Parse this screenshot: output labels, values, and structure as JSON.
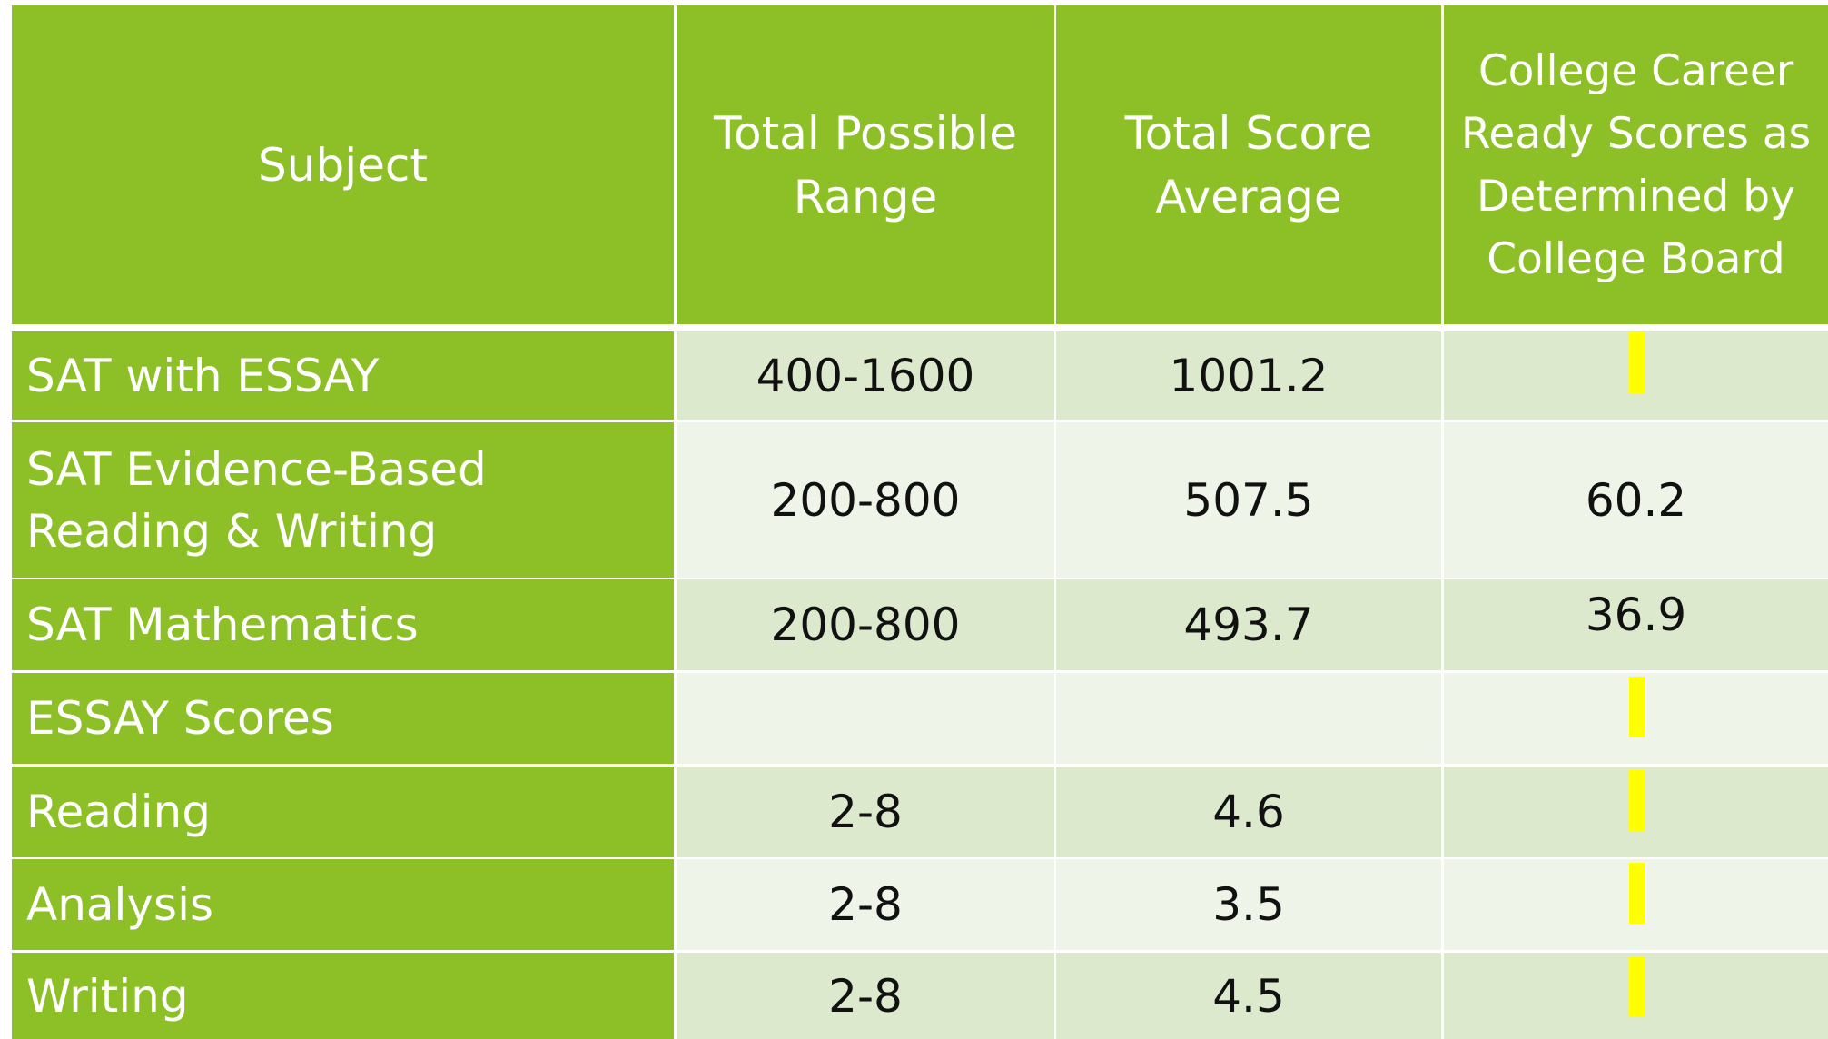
{
  "table": {
    "header": [
      "Subject",
      "Total Possible Range",
      "Total Score Average",
      "College Career Ready Scores as Determined by College Board"
    ],
    "rows": [
      {
        "subject": "SAT with ESSAY",
        "range": "400-1600",
        "average": "1001.2"
      },
      {
        "subject": "SAT Evidence-Based Reading & Writing",
        "range": "200-800",
        "average": "507.5",
        "ready": "60.2"
      },
      {
        "subject": "SAT Mathematics",
        "range": "200-800",
        "average": "493.7",
        "ready": "36.9"
      },
      {
        "subject": "ESSAY Scores"
      },
      {
        "subject": "Reading",
        "range": "2-8",
        "average": "4.6"
      },
      {
        "subject": "Analysis",
        "range": "2-8",
        "average": "3.5"
      },
      {
        "subject": "Writing",
        "range": "2-8",
        "average": "4.5"
      }
    ]
  }
}
